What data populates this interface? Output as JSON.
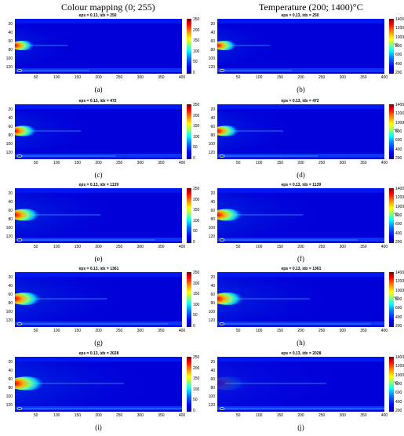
{
  "headers": {
    "left": "Colour mapping  (0; 255)",
    "right": "Temperature  (200;  1400)°C"
  },
  "y_ticks": [
    "20",
    "40",
    "60",
    "80",
    "100",
    "120"
  ],
  "x_ticks": [
    "50",
    "100",
    "150",
    "200",
    "250",
    "300",
    "350",
    "400"
  ],
  "colorbar_left": [
    "250",
    "200",
    "150",
    "100",
    "50",
    "0"
  ],
  "colorbar_right": [
    "1400",
    "1200",
    "1000",
    "800",
    "600",
    "400",
    "200"
  ],
  "unit_right": "°C",
  "colors": {
    "background": "#0000d8",
    "hot": "#ff2000"
  },
  "panels": [
    {
      "label": "(a)",
      "title": "eps = 0.13, idx = 250",
      "mapping": "colour",
      "x_ticks": [
        "50",
        "100",
        "150",
        "200",
        "250",
        "300",
        "350",
        "400"
      ]
    },
    {
      "label": "(b)",
      "title": "eps = 0.13, idx = 250",
      "mapping": "temperature",
      "x_ticks": [
        "50",
        "100",
        "150",
        "200",
        "250",
        "300",
        "350",
        "400"
      ]
    },
    {
      "label": "(c)",
      "title": "eps = 0.13, idx = 472",
      "mapping": "colour",
      "x_ticks": [
        "50",
        "100",
        "150",
        "200",
        "250",
        "300",
        "350",
        "400"
      ]
    },
    {
      "label": "(d)",
      "title": "eps = 0.13, idx = 472",
      "mapping": "temperature",
      "x_ticks": [
        "50",
        "100",
        "150",
        "200",
        "250",
        "300",
        "350",
        "400"
      ]
    },
    {
      "label": "(e)",
      "title": "eps = 0.13, idx = 1139",
      "mapping": "colour",
      "x_ticks": [
        "50",
        "100",
        "150",
        "200",
        "250",
        "300",
        "350",
        "400"
      ]
    },
    {
      "label": "(f)",
      "title": "eps = 0.13, idx = 1139",
      "mapping": "temperature",
      "x_ticks": [
        "50",
        "100",
        "150",
        "200",
        "250",
        "300",
        "350",
        "400"
      ]
    },
    {
      "label": "(g)",
      "title": "eps = 0.13, idx = 1361",
      "mapping": "colour",
      "x_ticks": [
        "50",
        "100",
        "150",
        "200",
        "250",
        "300",
        "350",
        "400"
      ]
    },
    {
      "label": "(h)",
      "title": "eps = 0.13, idx = 1361",
      "mapping": "temperature",
      "x_ticks": [
        "50",
        "100",
        "150",
        "200",
        "250",
        "300",
        "350",
        "400"
      ]
    },
    {
      "label": "(i)",
      "title": "eps = 0.13, idx = 2028",
      "mapping": "colour",
      "x_ticks": [
        "50",
        "100",
        "150",
        "200",
        "250",
        "300",
        "350",
        "400"
      ]
    },
    {
      "label": "(j)",
      "title": "eps = 0.13, idx = 2028",
      "mapping": "temperature",
      "x_ticks": [
        "50",
        "100",
        "150",
        "200",
        "250",
        "300",
        "350",
        "400"
      ]
    }
  ]
}
